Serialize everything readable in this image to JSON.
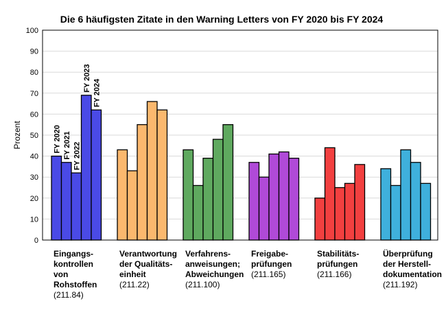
{
  "chart_data": {
    "type": "bar",
    "title": "Die 6 häufigsten Zitate in den Warning Letters von FY 2020 bis FY 2024",
    "xlabel": "",
    "ylabel": "Prozent",
    "ylim": [
      0,
      100
    ],
    "yticks": [
      0,
      10,
      20,
      30,
      40,
      50,
      60,
      70,
      80,
      90,
      100
    ],
    "grid": true,
    "legend": "inline labels on first group",
    "series_names": [
      "FY 2020",
      "FY 2021",
      "FY 2022",
      "FY 2023",
      "FY 2024"
    ],
    "categories": [
      {
        "label": [
          "Eingangs-",
          "kontrollen",
          "von",
          "Rohstoffen"
        ],
        "code": "(211.84)",
        "color": "#4a4ae6",
        "values": [
          40,
          37,
          32,
          69,
          62
        ]
      },
      {
        "label": [
          "Verantwortung",
          "der Qualitäts-",
          "einheit"
        ],
        "code": "(211.22)",
        "color": "#fbb86e",
        "values": [
          43,
          33,
          55,
          66,
          62
        ]
      },
      {
        "label": [
          "Verfahrens-",
          "anweisungen;",
          "Abweichungen"
        ],
        "code": "(211.100)",
        "color": "#5fa95f",
        "values": [
          43,
          26,
          39,
          48,
          55
        ]
      },
      {
        "label": [
          "Freigabe-",
          "prüfungen"
        ],
        "code": "(211.165)",
        "color": "#b04ad8",
        "values": [
          37,
          30,
          41,
          42,
          39
        ]
      },
      {
        "label": [
          "Stabilitäts-",
          "prüfungen"
        ],
        "code": "(211.166)",
        "color": "#f24040",
        "values": [
          20,
          44,
          25,
          27,
          36
        ]
      },
      {
        "label": [
          "Überprüfung",
          "der Herstell-",
          "dokumentation"
        ],
        "code": "(211.192)",
        "color": "#3fb0dc",
        "values": [
          34,
          26,
          43,
          37,
          27
        ]
      }
    ]
  }
}
